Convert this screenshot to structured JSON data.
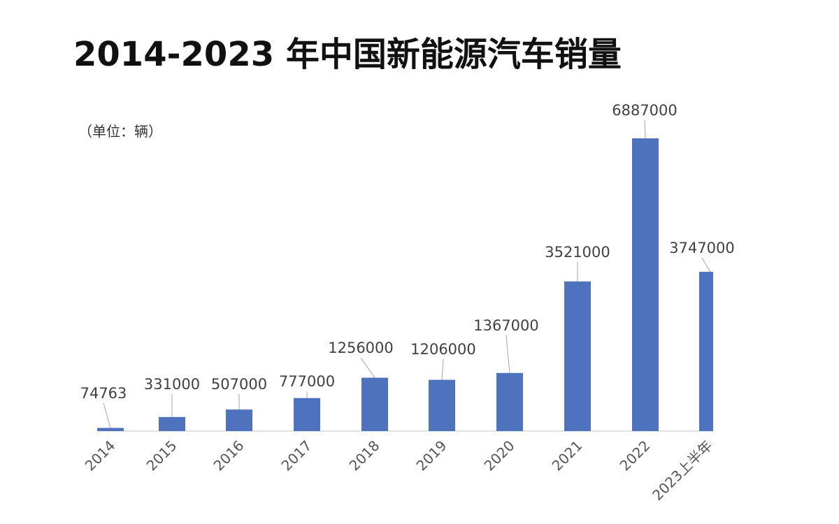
{
  "chart_data": {
    "type": "bar",
    "title": "2014-2023 年中国新能源汽车销量",
    "unit_label": "（单位：辆）",
    "categories": [
      "2014",
      "2015",
      "2016",
      "2017",
      "2018",
      "2019",
      "2020",
      "2021",
      "2022",
      "2023上半年"
    ],
    "values": [
      74763,
      331000,
      507000,
      777000,
      1256000,
      1206000,
      1367000,
      3521000,
      6887000,
      3747000
    ],
    "xlabel": "",
    "ylabel": "",
    "grid": false,
    "bar_color": "#4f72be"
  }
}
